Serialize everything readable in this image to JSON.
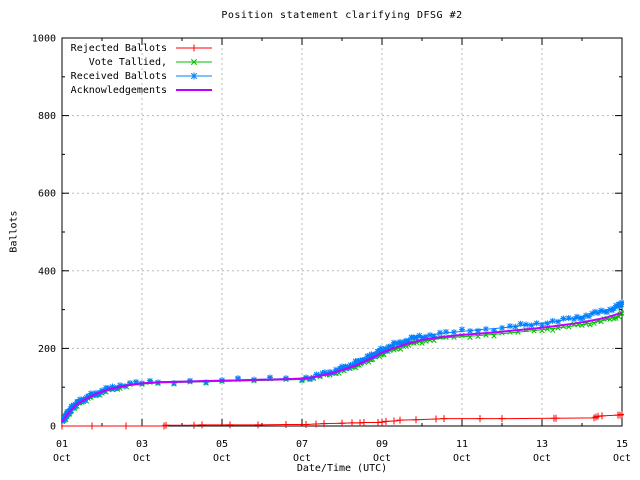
{
  "chart_data": {
    "type": "line",
    "title": "Position statement clarifying DFSG #2",
    "xlabel": "Date/Time (UTC)",
    "ylabel": "Ballots",
    "grid": true,
    "legend_position": "top-left",
    "background": "#ffffff",
    "grid_color": "#b8b8b8",
    "axis_color": "#000000",
    "x_axis": {
      "range_days": [
        0,
        14
      ],
      "major_ticks": [
        {
          "day": 0,
          "top": "01",
          "bottom": "Oct"
        },
        {
          "day": 2,
          "top": "03",
          "bottom": "Oct"
        },
        {
          "day": 4,
          "top": "05",
          "bottom": "Oct"
        },
        {
          "day": 6,
          "top": "07",
          "bottom": "Oct"
        },
        {
          "day": 8,
          "top": "09",
          "bottom": "Oct"
        },
        {
          "day": 10,
          "top": "11",
          "bottom": "Oct"
        },
        {
          "day": 12,
          "top": "13",
          "bottom": "Oct"
        },
        {
          "day": 14,
          "top": "15",
          "bottom": "Oct"
        }
      ],
      "minor_tick_days": [
        1,
        3,
        5,
        7,
        9,
        11,
        13
      ]
    },
    "y_axis": {
      "range": [
        0,
        1000
      ],
      "major_ticks": [
        0,
        200,
        400,
        600,
        800,
        1000
      ],
      "minor_ticks": [
        100,
        300,
        500,
        700,
        900
      ]
    },
    "series": [
      {
        "name": "Rejected Ballots",
        "color": "#ff0000",
        "marker": "plus",
        "line_width": 1,
        "band": 0,
        "points": [
          [
            0,
            0
          ],
          [
            0.75,
            0
          ],
          [
            1.6,
            0
          ],
          [
            2.55,
            0
          ],
          [
            2.6,
            2
          ],
          [
            3.3,
            2
          ],
          [
            3.5,
            3
          ],
          [
            4.2,
            3
          ],
          [
            4.9,
            3
          ],
          [
            5.6,
            4
          ],
          [
            6.1,
            4
          ],
          [
            6.35,
            5
          ],
          [
            6.55,
            6
          ],
          [
            7.0,
            7
          ],
          [
            7.25,
            8
          ],
          [
            7.45,
            8
          ],
          [
            7.55,
            9
          ],
          [
            7.9,
            9
          ],
          [
            8.0,
            10
          ],
          [
            8.1,
            12
          ],
          [
            8.3,
            13
          ],
          [
            8.45,
            15
          ],
          [
            8.85,
            16
          ],
          [
            9.35,
            18
          ],
          [
            9.55,
            19
          ],
          [
            10.45,
            19
          ],
          [
            11.0,
            19
          ],
          [
            12.3,
            20
          ],
          [
            12.35,
            20
          ],
          [
            13.3,
            21
          ],
          [
            13.35,
            23
          ],
          [
            13.4,
            25
          ],
          [
            13.5,
            26
          ],
          [
            13.9,
            28
          ],
          [
            13.95,
            28
          ],
          [
            14.0,
            30
          ]
        ]
      },
      {
        "name": "Vote Tallied,",
        "color": "#00c000",
        "marker": "cross",
        "line_width": 1,
        "band": 5,
        "points": [
          [
            0,
            10
          ],
          [
            0.08,
            20
          ],
          [
            0.15,
            30
          ],
          [
            0.25,
            43
          ],
          [
            0.35,
            53
          ],
          [
            0.5,
            63
          ],
          [
            0.65,
            71
          ],
          [
            0.8,
            78
          ],
          [
            1.0,
            86
          ],
          [
            1.2,
            93
          ],
          [
            1.45,
            100
          ],
          [
            1.7,
            105
          ],
          [
            2.0,
            108
          ],
          [
            2.4,
            111
          ],
          [
            2.8,
            112
          ],
          [
            3.2,
            113
          ],
          [
            3.6,
            114
          ],
          [
            4.0,
            115
          ],
          [
            4.4,
            116
          ],
          [
            4.8,
            117
          ],
          [
            5.2,
            118
          ],
          [
            5.6,
            119
          ],
          [
            6.0,
            120
          ],
          [
            6.2,
            123
          ],
          [
            6.45,
            128
          ],
          [
            6.7,
            134
          ],
          [
            7.0,
            142
          ],
          [
            7.3,
            153
          ],
          [
            7.6,
            166
          ],
          [
            7.8,
            176
          ],
          [
            8.0,
            186
          ],
          [
            8.2,
            194
          ],
          [
            8.4,
            201
          ],
          [
            8.6,
            207
          ],
          [
            8.8,
            213
          ],
          [
            9.0,
            218
          ],
          [
            9.3,
            223
          ],
          [
            9.6,
            227
          ],
          [
            10.0,
            230
          ],
          [
            10.4,
            233
          ],
          [
            10.8,
            236
          ],
          [
            11.2,
            240
          ],
          [
            11.6,
            244
          ],
          [
            12.0,
            248
          ],
          [
            12.4,
            253
          ],
          [
            12.8,
            258
          ],
          [
            13.1,
            263
          ],
          [
            13.4,
            269
          ],
          [
            13.7,
            276
          ],
          [
            13.9,
            283
          ],
          [
            14.0,
            290
          ]
        ]
      },
      {
        "name": "Received Ballots",
        "color": "#0080ff",
        "marker": "star",
        "line_width": 1,
        "band": 6,
        "points": [
          [
            0,
            12
          ],
          [
            0.08,
            24
          ],
          [
            0.15,
            34
          ],
          [
            0.25,
            47
          ],
          [
            0.35,
            57
          ],
          [
            0.5,
            67
          ],
          [
            0.65,
            75
          ],
          [
            0.8,
            82
          ],
          [
            1.0,
            90
          ],
          [
            1.2,
            97
          ],
          [
            1.45,
            104
          ],
          [
            1.7,
            108
          ],
          [
            2.0,
            111
          ],
          [
            2.4,
            114
          ],
          [
            2.8,
            115
          ],
          [
            3.2,
            116
          ],
          [
            3.6,
            117
          ],
          [
            4.0,
            118
          ],
          [
            4.4,
            119
          ],
          [
            4.8,
            120
          ],
          [
            5.2,
            121
          ],
          [
            5.6,
            122
          ],
          [
            6.0,
            123
          ],
          [
            6.2,
            126
          ],
          [
            6.45,
            131
          ],
          [
            6.7,
            138
          ],
          [
            7.0,
            148
          ],
          [
            7.3,
            160
          ],
          [
            7.6,
            174
          ],
          [
            7.8,
            184
          ],
          [
            8.0,
            196
          ],
          [
            8.2,
            205
          ],
          [
            8.4,
            213
          ],
          [
            8.6,
            220
          ],
          [
            8.8,
            226
          ],
          [
            9.0,
            231
          ],
          [
            9.3,
            236
          ],
          [
            9.6,
            240
          ],
          [
            10.0,
            244
          ],
          [
            10.4,
            248
          ],
          [
            10.8,
            251
          ],
          [
            11.2,
            255
          ],
          [
            11.6,
            260
          ],
          [
            12.0,
            265
          ],
          [
            12.4,
            271
          ],
          [
            12.8,
            277
          ],
          [
            13.1,
            284
          ],
          [
            13.4,
            292
          ],
          [
            13.7,
            300
          ],
          [
            13.9,
            308
          ],
          [
            14.0,
            318
          ]
        ]
      },
      {
        "name": "Acknowledgements",
        "color": "#c000ff",
        "marker": "none",
        "line_width": 2,
        "band": 0,
        "points": [
          [
            0,
            11
          ],
          [
            0.15,
            32
          ],
          [
            0.35,
            55
          ],
          [
            0.6,
            70
          ],
          [
            0.9,
            85
          ],
          [
            1.2,
            95
          ],
          [
            1.6,
            104
          ],
          [
            2.0,
            110
          ],
          [
            2.5,
            113
          ],
          [
            3.0,
            114
          ],
          [
            3.6,
            116
          ],
          [
            4.2,
            117
          ],
          [
            4.8,
            119
          ],
          [
            5.4,
            120
          ],
          [
            6.0,
            122
          ],
          [
            6.3,
            126
          ],
          [
            6.7,
            135
          ],
          [
            7.0,
            144
          ],
          [
            7.4,
            158
          ],
          [
            7.8,
            178
          ],
          [
            8.0,
            189
          ],
          [
            8.3,
            201
          ],
          [
            8.6,
            211
          ],
          [
            9.0,
            222
          ],
          [
            9.4,
            228
          ],
          [
            9.8,
            233
          ],
          [
            10.3,
            237
          ],
          [
            10.8,
            241
          ],
          [
            11.3,
            246
          ],
          [
            11.8,
            251
          ],
          [
            12.3,
            257
          ],
          [
            12.8,
            264
          ],
          [
            13.2,
            271
          ],
          [
            13.6,
            279
          ],
          [
            14.0,
            292
          ]
        ]
      }
    ]
  }
}
